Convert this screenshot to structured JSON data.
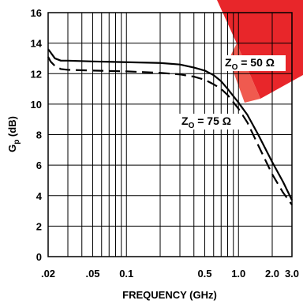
{
  "chart_data": {
    "type": "line",
    "xlabel": "FREQUENCY (GHz)",
    "ylabel_main": "G",
    "ylabel_sub": "p",
    "ylabel_unit": " (dB)",
    "x_scale": "log",
    "xlim": [
      0.02,
      3.0
    ],
    "ylim": [
      0,
      16
    ],
    "x_ticks": [
      {
        "value": 0.02,
        "label": ".02"
      },
      {
        "value": 0.05,
        "label": ".05"
      },
      {
        "value": 0.1,
        "label": "0.1"
      },
      {
        "value": 0.5,
        "label": "0.5"
      },
      {
        "value": 1.0,
        "label": "1.0"
      },
      {
        "value": 2.0,
        "label": "2.0"
      },
      {
        "value": 3.0,
        "label": "3.0"
      }
    ],
    "x_grid": [
      0.02,
      0.03,
      0.04,
      0.05,
      0.06,
      0.07,
      0.08,
      0.09,
      0.1,
      0.2,
      0.3,
      0.4,
      0.5,
      0.6,
      0.7,
      0.8,
      0.9,
      1.0,
      2.0,
      3.0
    ],
    "y_ticks": [
      0,
      2,
      4,
      6,
      8,
      10,
      12,
      14,
      16
    ],
    "grid": true,
    "series": [
      {
        "name": "Z_O = 50 Ω",
        "style": "solid",
        "x": [
          0.02,
          0.021,
          0.023,
          0.026,
          0.03,
          0.05,
          0.1,
          0.2,
          0.3,
          0.4,
          0.5,
          0.6,
          0.7,
          0.8,
          1.0,
          1.2,
          1.5,
          2.0,
          2.5,
          3.0
        ],
        "y": [
          13.6,
          13.4,
          13.0,
          12.85,
          12.85,
          12.8,
          12.75,
          12.7,
          12.6,
          12.4,
          12.2,
          11.9,
          11.5,
          11.0,
          10.1,
          9.3,
          8.0,
          6.2,
          4.9,
          3.7
        ]
      },
      {
        "name": "Z_O = 75 Ω",
        "style": "dashed",
        "x": [
          0.02,
          0.021,
          0.023,
          0.026,
          0.03,
          0.05,
          0.1,
          0.2,
          0.3,
          0.4,
          0.5,
          0.6,
          0.7,
          0.8,
          1.0,
          1.2,
          1.5,
          2.0,
          2.5,
          3.0
        ],
        "y": [
          13.1,
          12.8,
          12.5,
          12.3,
          12.25,
          12.2,
          12.15,
          12.05,
          11.95,
          11.8,
          11.6,
          11.3,
          11.0,
          10.6,
          9.7,
          8.8,
          7.3,
          5.4,
          4.2,
          3.4
        ]
      }
    ],
    "annotations": [
      {
        "main": "Z",
        "sub": "O",
        "rest": " = 50 Ω",
        "series": 0
      },
      {
        "main": "Z",
        "sub": "O",
        "rest": " = 75 Ω",
        "series": 1
      }
    ],
    "colors": {
      "line": "#000000",
      "grid": "#000000",
      "watermark": "#e8262a"
    }
  }
}
